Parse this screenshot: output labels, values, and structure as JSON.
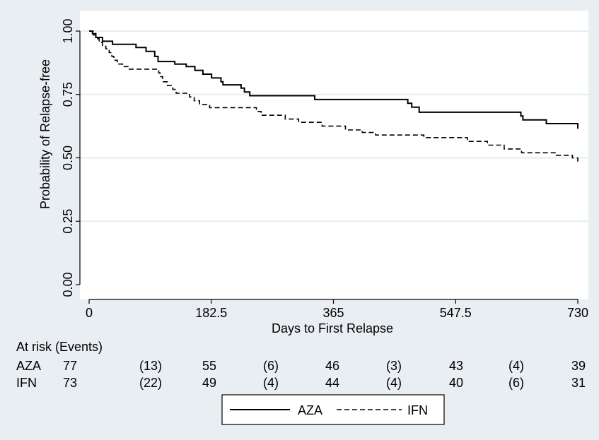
{
  "chart_data": {
    "type": "line",
    "xlabel": "Days to First Relapse",
    "ylabel": "Probability of Relapse-free",
    "xlim": [
      0,
      730
    ],
    "ylim": [
      0,
      1
    ],
    "x_ticks": [
      {
        "value": 0,
        "label": "0"
      },
      {
        "value": 182.5,
        "label": "182.5"
      },
      {
        "value": 365,
        "label": "365"
      },
      {
        "value": 547.5,
        "label": "547.5"
      },
      {
        "value": 730,
        "label": "730"
      }
    ],
    "y_ticks": [
      {
        "value": 0,
        "label": "0.00"
      },
      {
        "value": 0.25,
        "label": "0.25"
      },
      {
        "value": 0.5,
        "label": "0.50"
      },
      {
        "value": 0.75,
        "label": "0.75"
      },
      {
        "value": 1,
        "label": "1.00"
      }
    ],
    "grid": "horizontal",
    "series": [
      {
        "name": "AZA",
        "style": "solid",
        "points": [
          [
            0,
            1.0
          ],
          [
            5,
            0.99
          ],
          [
            10,
            0.975
          ],
          [
            20,
            0.96
          ],
          [
            35,
            0.948
          ],
          [
            70,
            0.935
          ],
          [
            85,
            0.92
          ],
          [
            98,
            0.9
          ],
          [
            103,
            0.88
          ],
          [
            128,
            0.87
          ],
          [
            145,
            0.86
          ],
          [
            158,
            0.845
          ],
          [
            170,
            0.83
          ],
          [
            183,
            0.815
          ],
          [
            197,
            0.8
          ],
          [
            200,
            0.788
          ],
          [
            227,
            0.775
          ],
          [
            232,
            0.76
          ],
          [
            240,
            0.745
          ],
          [
            335,
            0.745
          ],
          [
            337,
            0.73
          ],
          [
            468,
            0.73
          ],
          [
            476,
            0.715
          ],
          [
            482,
            0.7
          ],
          [
            493,
            0.68
          ],
          [
            642,
            0.68
          ],
          [
            645,
            0.665
          ],
          [
            648,
            0.65
          ],
          [
            680,
            0.65
          ],
          [
            683,
            0.635
          ],
          [
            728,
            0.635
          ],
          [
            730,
            0.615
          ]
        ]
      },
      {
        "name": "IFN",
        "style": "dashed",
        "points": [
          [
            0,
            1.0
          ],
          [
            6,
            0.985
          ],
          [
            10,
            0.97
          ],
          [
            15,
            0.955
          ],
          [
            20,
            0.94
          ],
          [
            25,
            0.93
          ],
          [
            30,
            0.915
          ],
          [
            34,
            0.9
          ],
          [
            37,
            0.885
          ],
          [
            42,
            0.87
          ],
          [
            50,
            0.86
          ],
          [
            60,
            0.85
          ],
          [
            100,
            0.85
          ],
          [
            104,
            0.835
          ],
          [
            106,
            0.82
          ],
          [
            110,
            0.8
          ],
          [
            117,
            0.785
          ],
          [
            125,
            0.77
          ],
          [
            130,
            0.755
          ],
          [
            150,
            0.74
          ],
          [
            157,
            0.725
          ],
          [
            165,
            0.71
          ],
          [
            180,
            0.698
          ],
          [
            245,
            0.698
          ],
          [
            250,
            0.683
          ],
          [
            257,
            0.668
          ],
          [
            290,
            0.668
          ],
          [
            293,
            0.653
          ],
          [
            310,
            0.653
          ],
          [
            313,
            0.64
          ],
          [
            345,
            0.64
          ],
          [
            348,
            0.625
          ],
          [
            380,
            0.625
          ],
          [
            383,
            0.61
          ],
          [
            405,
            0.61
          ],
          [
            408,
            0.6
          ],
          [
            425,
            0.6
          ],
          [
            428,
            0.59
          ],
          [
            497,
            0.59
          ],
          [
            500,
            0.58
          ],
          [
            560,
            0.58
          ],
          [
            565,
            0.565
          ],
          [
            590,
            0.565
          ],
          [
            595,
            0.55
          ],
          [
            615,
            0.55
          ],
          [
            620,
            0.535
          ],
          [
            643,
            0.535
          ],
          [
            646,
            0.52
          ],
          [
            695,
            0.52
          ],
          [
            698,
            0.51
          ],
          [
            720,
            0.51
          ],
          [
            722,
            0.5
          ],
          [
            728,
            0.5
          ],
          [
            730,
            0.485
          ]
        ]
      }
    ],
    "risk_table": {
      "header": "At risk (Events)",
      "rows": [
        {
          "label": "AZA",
          "values": [
            "77",
            "(13)",
            "55",
            "(6)",
            "46",
            "(3)",
            "43",
            "(4)",
            "39"
          ]
        },
        {
          "label": "IFN",
          "values": [
            "73",
            "(22)",
            "49",
            "(4)",
            "44",
            "(4)",
            "40",
            "(6)",
            "31"
          ]
        }
      ]
    },
    "legend": {
      "placement": "bottom-center",
      "items": [
        {
          "label": "AZA",
          "style": "solid"
        },
        {
          "label": "IFN",
          "style": "dashed"
        }
      ]
    },
    "colors": {
      "background": "#e9eef3",
      "plot_background": "#ffffff",
      "grid": "#e7ebef",
      "line": "#000000"
    }
  }
}
